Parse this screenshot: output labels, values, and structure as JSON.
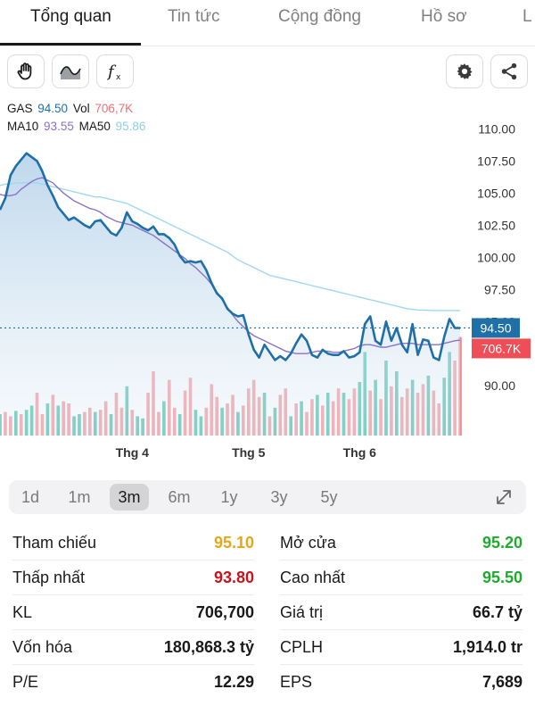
{
  "tabs": [
    {
      "label": "Tổng quan",
      "active": true
    },
    {
      "label": "Tin tức",
      "active": false
    },
    {
      "label": "Cộng đồng",
      "active": false
    },
    {
      "label": "Hồ sơ",
      "active": false
    },
    {
      "label": "L",
      "active": false
    }
  ],
  "toolbar": {
    "left_tools": [
      "hand-icon",
      "wave-icon",
      "function-icon"
    ],
    "right_tools": [
      "gear-icon",
      "share-icon"
    ]
  },
  "legend": {
    "ticker": "GAS",
    "price": "94.50",
    "vol_label": "Vol",
    "vol": "706,7K",
    "ma10_label": "MA10",
    "ma10": "93.55",
    "ma50_label": "MA50",
    "ma50": "95.86"
  },
  "colors": {
    "price": "#1f6fa8",
    "volume_up": "#3fb7a0",
    "volume_down": "#f08a8f",
    "ma10": "#8a72c9",
    "ma50": "#9ed8f0",
    "price_badge": "#1f6fa8",
    "vol_badge": "#ef4e56"
  },
  "chart_data": {
    "type": "line",
    "ylim": [
      88,
      111
    ],
    "y_ticks": [
      "110.00",
      "107.50",
      "105.00",
      "102.50",
      "100.00",
      "97.50",
      "95.00",
      "92.50",
      "90.00"
    ],
    "x_ticks": [
      {
        "label": "Thg 4",
        "index": 25
      },
      {
        "label": "Thg 5",
        "index": 47
      },
      {
        "label": "Thg 6",
        "index": 68
      }
    ],
    "current_price_label": "94.50",
    "current_volume_label": "706.7K",
    "price": [
      103.7,
      104.6,
      106.4,
      107.1,
      107.6,
      108.1,
      107.8,
      107.5,
      106.7,
      105.6,
      104.8,
      103.9,
      103.4,
      102.9,
      103.1,
      102.8,
      102.5,
      102.3,
      102.8,
      102.9,
      102.4,
      101.9,
      101.7,
      102.3,
      103.5,
      102.8,
      102.6,
      102.3,
      102.1,
      102.4,
      101.8,
      101.8,
      101.5,
      101.0,
      100.1,
      99.6,
      99.7,
      99.6,
      99.7,
      99.0,
      98.0,
      97.2,
      96.8,
      96.0,
      95.6,
      95.4,
      95.5,
      94.0,
      92.8,
      92.2,
      93.2,
      92.6,
      92.0,
      92.3,
      92.0,
      92.5,
      93.3,
      94.0,
      93.5,
      92.4,
      92.2,
      92.8,
      92.5,
      92.4,
      92.4,
      92.7,
      92.2,
      92.3,
      92.6,
      94.8,
      95.4,
      93.5,
      93.2,
      95.0,
      93.5,
      94.5,
      93.2,
      92.6,
      94.8,
      92.4,
      93.6,
      93.5,
      92.2,
      92.0,
      93.8,
      95.2,
      94.5,
      94.5
    ],
    "ma10": [
      104.9,
      104.8,
      104.8,
      104.9,
      105.3,
      105.6,
      105.9,
      106.1,
      106.2,
      106.0,
      105.8,
      105.4,
      105.0,
      104.7,
      104.4,
      104.2,
      104.0,
      103.8,
      103.7,
      103.5,
      103.2,
      103.0,
      102.8,
      102.7,
      102.6,
      102.5,
      102.3,
      102.1,
      101.9,
      101.7,
      101.4,
      101.1,
      100.8,
      100.5,
      100.2,
      99.9,
      99.5,
      99.2,
      98.8,
      98.4,
      97.9,
      97.3,
      96.7,
      96.1,
      95.5,
      95.0,
      94.6,
      94.2,
      93.9,
      93.7,
      93.5,
      93.3,
      93.1,
      92.9,
      92.7,
      92.6,
      92.5,
      92.5,
      92.5,
      92.6,
      92.7,
      92.7,
      92.7,
      92.6,
      92.6,
      92.7,
      92.8,
      92.9,
      93.1,
      93.2,
      93.2,
      93.1,
      93.0,
      93.0,
      93.1,
      93.2,
      93.3,
      93.3,
      93.3,
      93.2,
      93.2,
      93.2,
      93.2,
      93.2,
      93.3,
      93.4,
      93.5,
      93.55
    ],
    "ma50": [
      105.6,
      105.7,
      105.7,
      105.8,
      105.8,
      105.8,
      105.8,
      105.8,
      105.7,
      105.6,
      105.5,
      105.4,
      105.3,
      105.2,
      105.1,
      105.0,
      104.9,
      104.8,
      104.7,
      104.7,
      104.6,
      104.5,
      104.4,
      104.3,
      104.2,
      104.0,
      103.8,
      103.6,
      103.4,
      103.2,
      103.0,
      102.8,
      102.6,
      102.4,
      102.2,
      102.0,
      101.8,
      101.6,
      101.4,
      101.2,
      101.0,
      100.8,
      100.6,
      100.4,
      100.1,
      99.8,
      99.6,
      99.4,
      99.2,
      99.0,
      98.8,
      98.6,
      98.5,
      98.4,
      98.3,
      98.2,
      98.1,
      98.0,
      97.9,
      97.8,
      97.7,
      97.6,
      97.5,
      97.4,
      97.3,
      97.2,
      97.1,
      97.0,
      96.9,
      96.8,
      96.7,
      96.6,
      96.5,
      96.4,
      96.3,
      96.2,
      96.1,
      96.0,
      95.95,
      95.9,
      95.88,
      95.87,
      95.86,
      95.86,
      95.86,
      95.86,
      95.86,
      95.86
    ],
    "volume_scale_max": 100,
    "volume": [
      20,
      22,
      18,
      23,
      20,
      24,
      28,
      40,
      20,
      30,
      38,
      28,
      32,
      30,
      18,
      20,
      22,
      26,
      22,
      24,
      32,
      20,
      40,
      26,
      46,
      24,
      18,
      16,
      40,
      60,
      22,
      32,
      52,
      26,
      20,
      42,
      54,
      24,
      18,
      26,
      48,
      36,
      26,
      30,
      38,
      22,
      28,
      44,
      52,
      36,
      40,
      18,
      26,
      38,
      44,
      18,
      30,
      32,
      22,
      34,
      38,
      28,
      40,
      32,
      44,
      40,
      34,
      44,
      50,
      78,
      42,
      52,
      34,
      70,
      46,
      60,
      36,
      44,
      52,
      40,
      48,
      56,
      42,
      30,
      54,
      78,
      70,
      92
    ],
    "volume_up": [
      1,
      0,
      0,
      1,
      0,
      1,
      1,
      0,
      0,
      1,
      0,
      1,
      0,
      0,
      1,
      1,
      0,
      0,
      1,
      0,
      0,
      1,
      0,
      0,
      1,
      0,
      1,
      1,
      0,
      0,
      0,
      1,
      0,
      0,
      1,
      0,
      0,
      1,
      1,
      0,
      0,
      0,
      1,
      0,
      0,
      1,
      0,
      0,
      0,
      0,
      1,
      0,
      1,
      0,
      0,
      1,
      0,
      1,
      0,
      0,
      1,
      0,
      1,
      0,
      0,
      1,
      0,
      0,
      1,
      1,
      0,
      1,
      0,
      1,
      0,
      1,
      0,
      0,
      1,
      0,
      0,
      1,
      0,
      0,
      1,
      1,
      0,
      0
    ]
  },
  "ranges": [
    {
      "label": "1d",
      "active": false
    },
    {
      "label": "1m",
      "active": false
    },
    {
      "label": "3m",
      "active": true
    },
    {
      "label": "6m",
      "active": false
    },
    {
      "label": "1y",
      "active": false
    },
    {
      "label": "3y",
      "active": false
    },
    {
      "label": "5y",
      "active": false
    }
  ],
  "stats": {
    "left": [
      {
        "label": "Tham chiếu",
        "value": "95.10",
        "color": "#e3a817"
      },
      {
        "label": "Thấp nhất",
        "value": "93.80",
        "color": "#c6151f"
      },
      {
        "label": "KL",
        "value": "706,700",
        "color": "#1a1a1a"
      },
      {
        "label": "Vốn hóa",
        "value": "180,868.3 tỷ",
        "color": "#1a1a1a"
      },
      {
        "label": "P/E",
        "value": "12.29",
        "color": "#1a1a1a"
      }
    ],
    "right": [
      {
        "label": "Mở cửa",
        "value": "95.20",
        "color": "#1fab2f"
      },
      {
        "label": "Cao nhất",
        "value": "95.50",
        "color": "#1fab2f"
      },
      {
        "label": "Giá trị",
        "value": "66.7 tỷ",
        "color": "#1a1a1a"
      },
      {
        "label": "CPLH",
        "value": "1,914.0 tr",
        "color": "#1a1a1a"
      },
      {
        "label": "EPS",
        "value": "7,689",
        "color": "#1a1a1a"
      }
    ]
  }
}
